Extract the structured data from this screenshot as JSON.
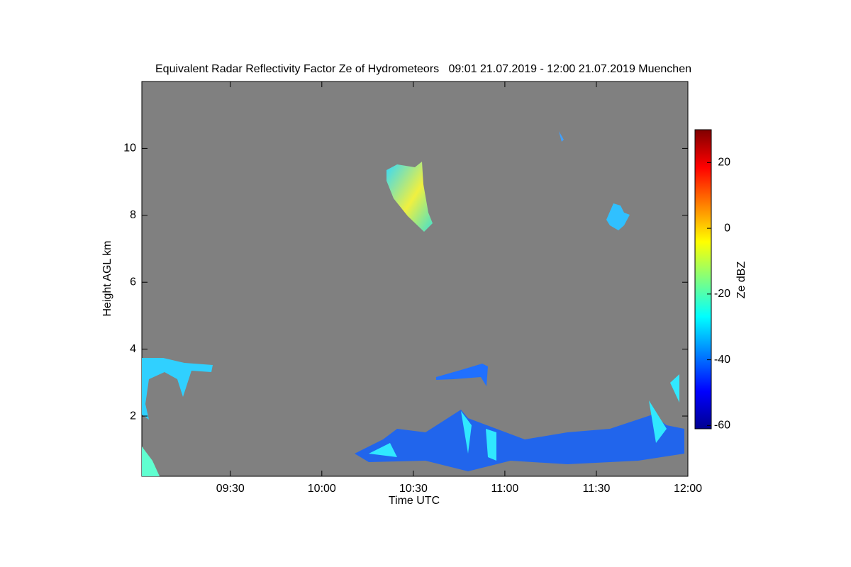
{
  "chart_data": {
    "type": "time-height",
    "title": "Equivalent Radar Reflectivity Factor Ze of Hydrometeors   09:01 21.07.2019 - 12:00 21.07.2019 Muenchen",
    "xlabel": "Time UTC",
    "ylabel": "Height AGL km",
    "xlim": [
      541,
      720
    ],
    "xticks": [
      {
        "value": 570,
        "label": "09:30"
      },
      {
        "value": 600,
        "label": "10:00"
      },
      {
        "value": 630,
        "label": "10:30"
      },
      {
        "value": 660,
        "label": "11:00"
      },
      {
        "value": 690,
        "label": "11:30"
      },
      {
        "value": 720,
        "label": "12:00"
      }
    ],
    "ylim": [
      0.2,
      12
    ],
    "yticks": [
      2,
      4,
      6,
      8,
      10
    ],
    "colorbar": {
      "label": "Ze dBZ",
      "clim": [
        -61,
        30
      ],
      "ticks": [
        -60,
        -40,
        -20,
        0,
        20
      ]
    }
  }
}
